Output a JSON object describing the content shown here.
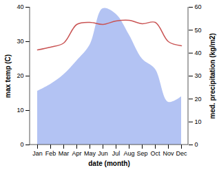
{
  "chart_data": {
    "type": "line",
    "x_label": "date (month)",
    "categories": [
      "Jan",
      "Feb",
      "Mar",
      "Apr",
      "May",
      "Jun",
      "Jul",
      "Aug",
      "Sep",
      "Oct",
      "Nov",
      "Dec"
    ],
    "series": [
      {
        "name": "med. precipitation (kg/m2)",
        "type": "area",
        "axis": "y2",
        "color": "#b3c3f3",
        "values": [
          23.4,
          26.4,
          30.6,
          36.6,
          43.5,
          59.4,
          57,
          48,
          37.5,
          33,
          18.6,
          21
        ]
      },
      {
        "name": "max temp (C)",
        "type": "line",
        "color": "#c95353",
        "values": [
          27.6,
          28.4,
          29.6,
          35,
          35.6,
          35,
          36,
          36.2,
          35.2,
          35.6,
          30,
          28.8
        ]
      }
    ],
    "ylim": [
      0,
      40
    ],
    "yticks": [
      0,
      10,
      20,
      30,
      40
    ],
    "y2lim": [
      0,
      60
    ],
    "y2ticks": [
      0,
      10,
      20,
      30,
      40,
      50,
      60
    ]
  }
}
